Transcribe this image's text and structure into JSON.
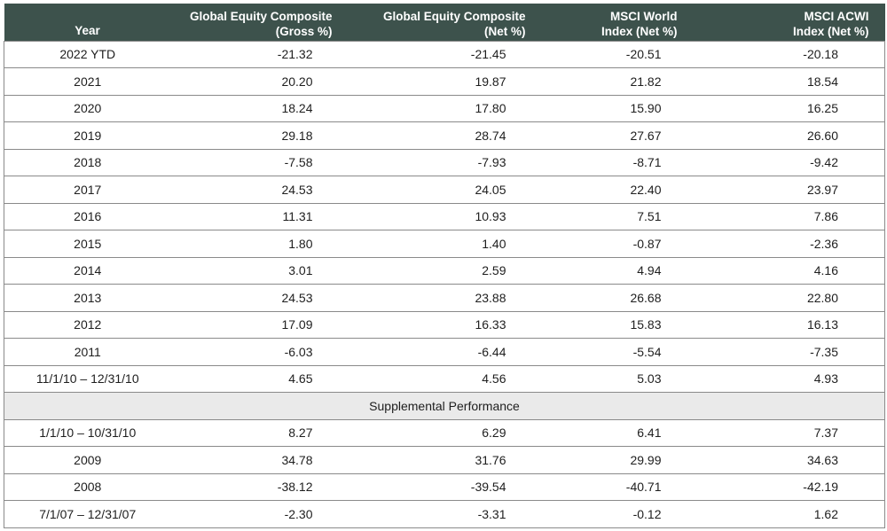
{
  "table": {
    "headers": {
      "year": "Year",
      "gross": [
        "Global Equity Composite",
        "(Gross %)"
      ],
      "net": [
        "Global Equity Composite",
        "(Net %)"
      ],
      "world": [
        "MSCI World",
        "Index (Net %)"
      ],
      "acwi": [
        "MSCI ACWI",
        "Index (Net %)"
      ]
    },
    "rows": [
      {
        "year": "2022 YTD",
        "gross": "-21.32",
        "net": "-21.45",
        "world": "-20.51",
        "acwi": "-20.18"
      },
      {
        "year": "2021",
        "gross": "20.20",
        "net": "19.87",
        "world": "21.82",
        "acwi": "18.54"
      },
      {
        "year": "2020",
        "gross": "18.24",
        "net": "17.80",
        "world": "15.90",
        "acwi": "16.25"
      },
      {
        "year": "2019",
        "gross": "29.18",
        "net": "28.74",
        "world": "27.67",
        "acwi": "26.60"
      },
      {
        "year": "2018",
        "gross": "-7.58",
        "net": "-7.93",
        "world": "-8.71",
        "acwi": "-9.42"
      },
      {
        "year": "2017",
        "gross": "24.53",
        "net": "24.05",
        "world": "22.40",
        "acwi": "23.97"
      },
      {
        "year": "2016",
        "gross": "11.31",
        "net": "10.93",
        "world": "7.51",
        "acwi": "7.86"
      },
      {
        "year": "2015",
        "gross": "1.80",
        "net": "1.40",
        "world": "-0.87",
        "acwi": "-2.36"
      },
      {
        "year": "2014",
        "gross": "3.01",
        "net": "2.59",
        "world": "4.94",
        "acwi": "4.16"
      },
      {
        "year": "2013",
        "gross": "24.53",
        "net": "23.88",
        "world": "26.68",
        "acwi": "22.80"
      },
      {
        "year": "2012",
        "gross": "17.09",
        "net": "16.33",
        "world": "15.83",
        "acwi": "16.13"
      },
      {
        "year": "2011",
        "gross": "-6.03",
        "net": "-6.44",
        "world": "-5.54",
        "acwi": "-7.35"
      },
      {
        "year": "11/1/10 – 12/31/10",
        "gross": "4.65",
        "net": "4.56",
        "world": "5.03",
        "acwi": "4.93"
      }
    ],
    "supplemental_label": "Supplemental Performance",
    "supplemental_rows": [
      {
        "year": "1/1/10 – 10/31/10",
        "gross": "8.27",
        "net": "6.29",
        "world": "6.41",
        "acwi": "7.37"
      },
      {
        "year": "2009",
        "gross": "34.78",
        "net": "31.76",
        "world": "29.99",
        "acwi": "34.63"
      },
      {
        "year": "2008",
        "gross": "-38.12",
        "net": "-39.54",
        "world": "-40.71",
        "acwi": "-42.19"
      },
      {
        "year": "7/1/07 – 12/31/07",
        "gross": "-2.30",
        "net": "-3.31",
        "world": "-0.12",
        "acwi": "1.62"
      }
    ],
    "colors": {
      "header_bg": "#3d524c",
      "header_text": "#ffffff",
      "supplemental_bg": "#eaeaea",
      "border": "#8a8a8a"
    }
  }
}
